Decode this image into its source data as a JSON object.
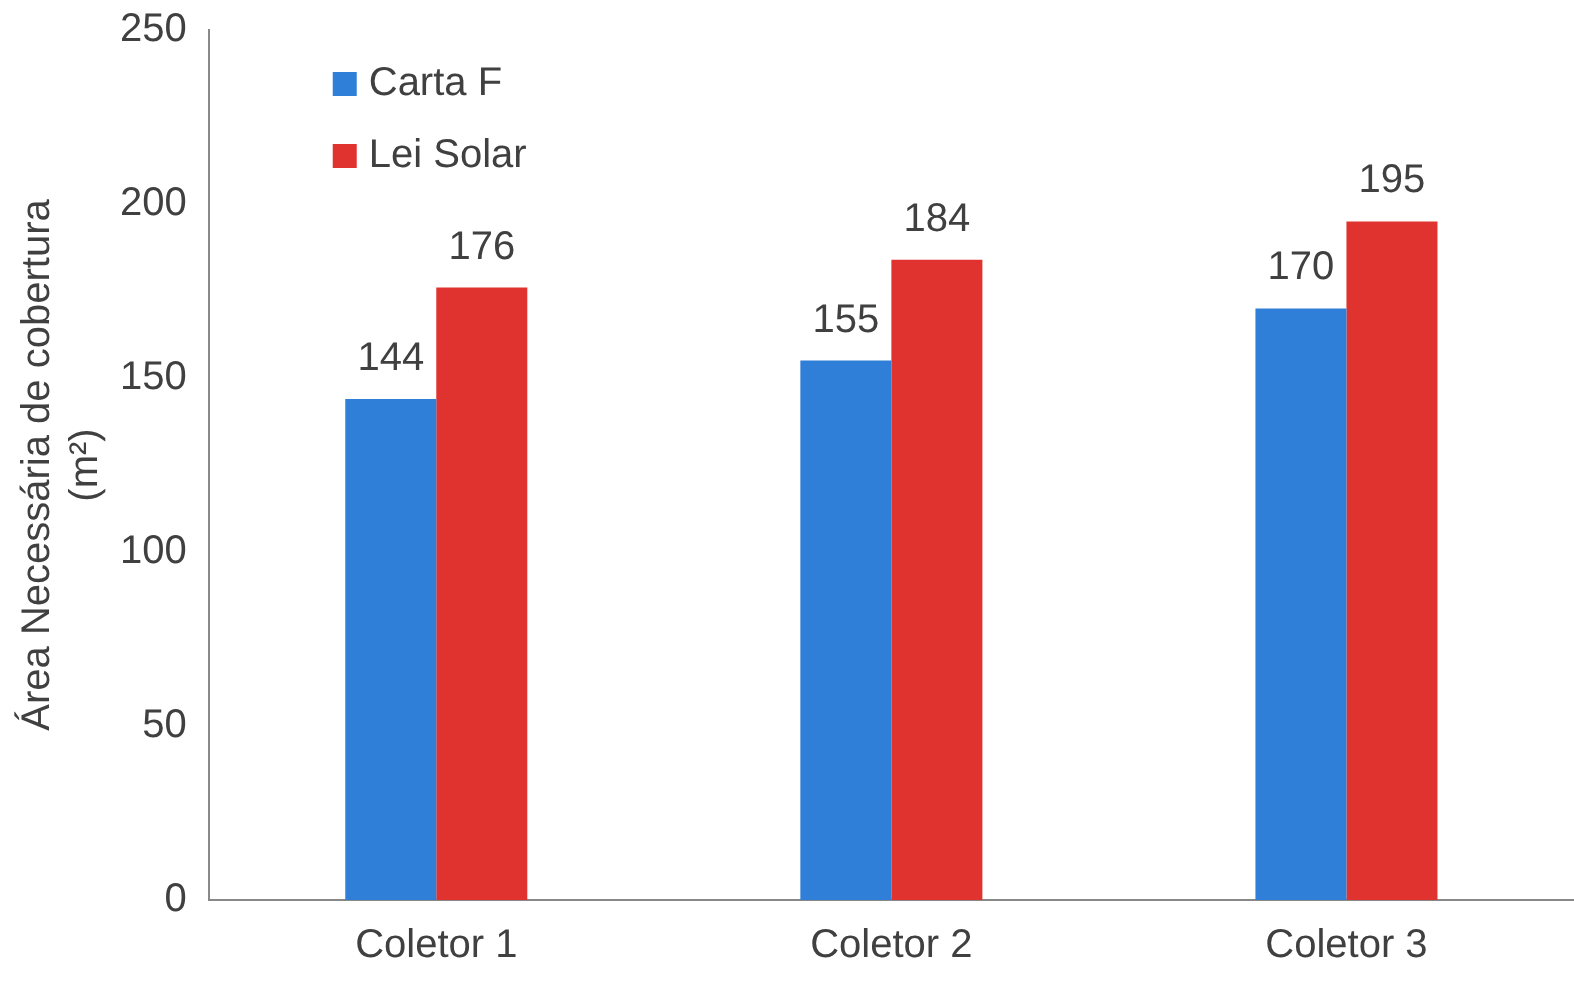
{
  "chart_data": {
    "type": "bar",
    "ylabel": "Área Necessária de cobertura\n(m²)",
    "categories": [
      "Coletor 1",
      "Coletor 2",
      "Coletor 3"
    ],
    "series": [
      {
        "name": "Carta F",
        "color": "#2f7ed8",
        "values": [
          144,
          155,
          170
        ]
      },
      {
        "name": "Lei Solar",
        "color": "#e0322e",
        "values": [
          176,
          184,
          195
        ]
      }
    ],
    "ylim": [
      0,
      250
    ],
    "yticks": [
      0,
      50,
      100,
      150,
      200,
      250
    ],
    "grid": false,
    "legend": "top left",
    "data_labels": true
  }
}
